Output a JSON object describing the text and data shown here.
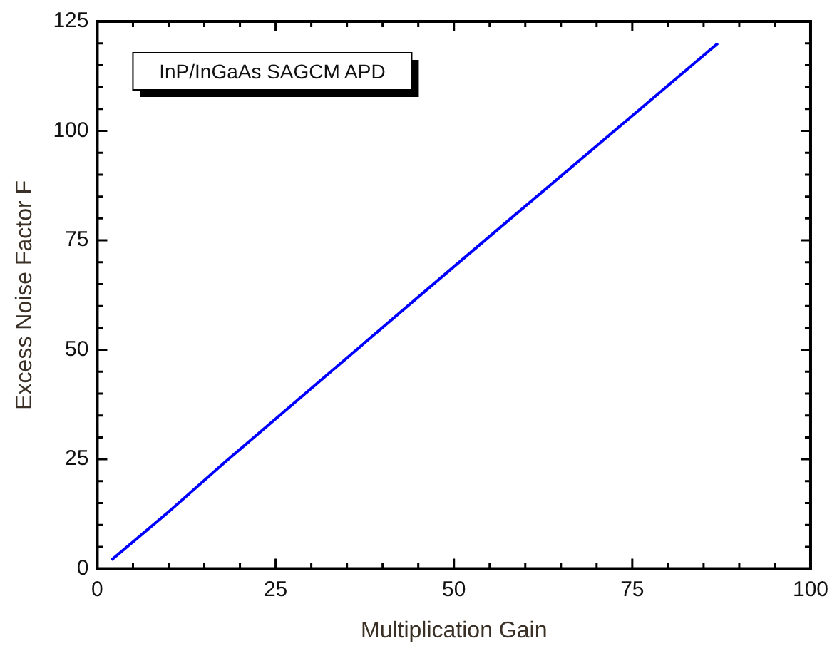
{
  "chart_data": {
    "type": "line",
    "xlabel": "Multiplication Gain",
    "ylabel": "Excess Noise Factor F",
    "x": [
      2,
      10,
      18,
      50,
      87
    ],
    "series": [
      {
        "color": "#0000ff",
        "values": [
          2,
          13,
          24.5,
          69,
          120
        ]
      }
    ],
    "xlim": [
      0,
      100
    ],
    "xticks": [
      0,
      {
        "value": 5,
        "label": null
      },
      {
        "value": 10,
        "label": null
      },
      {
        "value": 15,
        "label": null
      },
      {
        "value": 20,
        "label": null
      },
      25,
      {
        "value": 30,
        "label": null
      },
      {
        "value": 35,
        "label": null
      },
      {
        "value": 40,
        "label": null
      },
      {
        "value": 45,
        "label": null
      },
      50,
      {
        "value": 55,
        "label": null
      },
      {
        "value": 60,
        "label": null
      },
      {
        "value": 65,
        "label": null
      },
      {
        "value": 70,
        "label": null
      },
      75,
      {
        "value": 80,
        "label": null
      },
      {
        "value": 85,
        "label": null
      },
      {
        "value": 90,
        "label": null
      },
      {
        "value": 95,
        "label": null
      },
      100
    ],
    "ylim": [
      0,
      125
    ],
    "yticks": [
      0,
      {
        "value": 5,
        "label": null
      },
      {
        "value": 10,
        "label": null
      },
      {
        "value": 15,
        "label": null
      },
      {
        "value": 20,
        "label": null
      },
      25,
      {
        "value": 30,
        "label": null
      },
      {
        "value": 35,
        "label": null
      },
      {
        "value": 40,
        "label": null
      },
      {
        "value": 45,
        "label": null
      },
      50,
      {
        "value": 55,
        "label": null
      },
      {
        "value": 60,
        "label": null
      },
      {
        "value": 65,
        "label": null
      },
      {
        "value": 70,
        "label": null
      },
      75,
      {
        "value": 80,
        "label": null
      },
      {
        "value": 85,
        "label": null
      },
      {
        "value": 90,
        "label": null
      },
      {
        "value": 95,
        "label": null
      },
      100,
      {
        "value": 105,
        "label": null
      },
      {
        "value": 110,
        "label": null
      },
      {
        "value": 115,
        "label": null
      },
      {
        "value": 120,
        "label": null
      },
      125
    ],
    "annotations": [
      "InP/InGaAs SAGCM APD"
    ],
    "grid": false,
    "legend": false,
    "marker": "none",
    "line_style": "solid"
  }
}
